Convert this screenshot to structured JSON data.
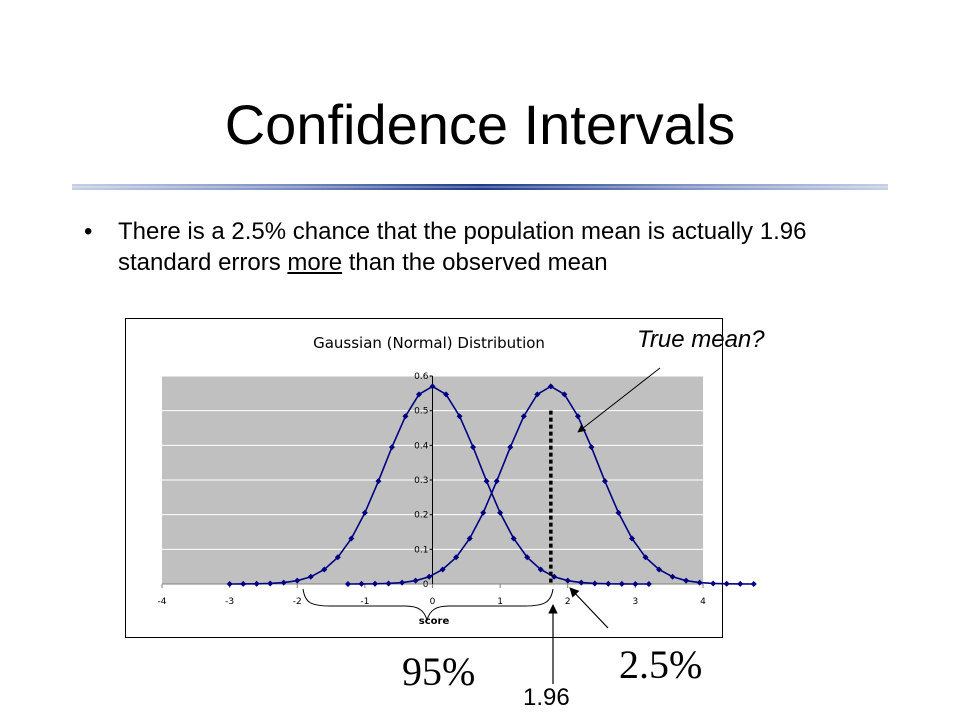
{
  "slide": {
    "title": "Confidence Intervals",
    "bullet_before": "There is a 2.5% chance that the population mean is actually 1.96 standard errors ",
    "bullet_underlined": "more",
    "bullet_after": " than the observed mean"
  },
  "annotations": {
    "true_mean": "True mean?",
    "pct_95": "95%",
    "pct_25": "2.5%",
    "z_value": "1.96"
  },
  "colors": {
    "curve": "#000080",
    "plot_bg": "#c0c0c0",
    "rule": "#1f3a8a"
  },
  "chart_data": {
    "type": "line",
    "title": "Gaussian (Normal) Distribution",
    "xlabel": "score",
    "ylabel": "",
    "xlim": [
      -4,
      4
    ],
    "ylim": [
      0,
      0.6
    ],
    "x_ticks": [
      "-4",
      "-3",
      "-2",
      "-1",
      "0",
      "1",
      "2",
      "3",
      "4"
    ],
    "y_ticks": [
      "0",
      "0.1",
      "0.2",
      "0.3",
      "0.4",
      "0.5",
      "0.6"
    ],
    "grid": true,
    "series": [
      {
        "mean": 0,
        "sd": 0.7,
        "x_min": -3,
        "x_max": 3.3,
        "x_step": 0.2
      },
      {
        "mean": 1.75,
        "sd": 0.7,
        "x_min": -1.25,
        "x_max": 4.85,
        "x_step": 0.2
      }
    ],
    "marker_x": 1.75
  }
}
